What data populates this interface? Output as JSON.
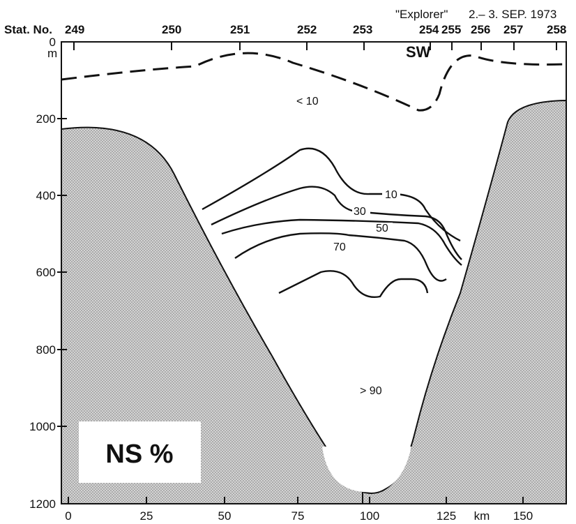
{
  "header": {
    "ship": "\"Explorer\"",
    "dates": "2.– 3. SEP. 1973",
    "station_prefix": "Stat. No."
  },
  "stations": [
    "249",
    "250",
    "251",
    "252",
    "253",
    "254",
    "255",
    "256",
    "257",
    "258"
  ],
  "depth_axis": {
    "unit": "m",
    "ticks": [
      "0",
      "200",
      "400",
      "600",
      "800",
      "1000",
      "1200"
    ]
  },
  "distance_axis": {
    "unit": "km",
    "ticks": [
      "0",
      "25",
      "50",
      "75",
      "100",
      "125",
      "150"
    ]
  },
  "labels": {
    "water_mass": "SW",
    "low": "< 10",
    "high": "> 90",
    "panel_title": "NS %"
  },
  "isolines": [
    {
      "value": "10",
      "level": 10
    },
    {
      "value": "30",
      "level": 30
    },
    {
      "value": "50",
      "level": 50
    },
    {
      "value": "70",
      "level": 70
    },
    {
      "value": "90",
      "level": 90
    }
  ],
  "colors": {
    "ink": "#111111",
    "seabed_fill": "#c9c9c9",
    "seabed_dots": "#8a8a8a",
    "background": "#ffffff"
  }
}
